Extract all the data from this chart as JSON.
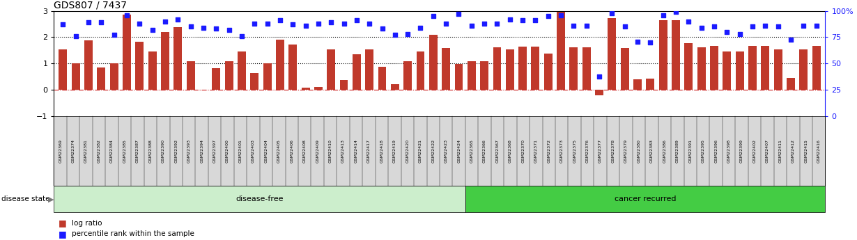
{
  "title": "GDS807 / 7437",
  "samples": [
    "GSM22369",
    "GSM22374",
    "GSM22381",
    "GSM22382",
    "GSM22384",
    "GSM22385",
    "GSM22387",
    "GSM22388",
    "GSM22390",
    "GSM22392",
    "GSM22393",
    "GSM22394",
    "GSM22397",
    "GSM22400",
    "GSM22401",
    "GSM22403",
    "GSM22404",
    "GSM22405",
    "GSM22406",
    "GSM22408",
    "GSM22409",
    "GSM22410",
    "GSM22413",
    "GSM22414",
    "GSM22417",
    "GSM22418",
    "GSM22419",
    "GSM22420",
    "GSM22421",
    "GSM22422",
    "GSM22423",
    "GSM22424",
    "GSM22365",
    "GSM22366",
    "GSM22367",
    "GSM22368",
    "GSM22370",
    "GSM22371",
    "GSM22372",
    "GSM22373",
    "GSM22375",
    "GSM22376",
    "GSM22377",
    "GSM22378",
    "GSM22379",
    "GSM22380",
    "GSM22383",
    "GSM22386",
    "GSM22389",
    "GSM22391",
    "GSM22395",
    "GSM22396",
    "GSM22398",
    "GSM22399",
    "GSM22402",
    "GSM22407",
    "GSM22411",
    "GSM22412",
    "GSM22415",
    "GSM22416"
  ],
  "log_ratio": [
    1.55,
    1.02,
    1.88,
    0.85,
    1.0,
    2.85,
    1.83,
    1.47,
    2.19,
    2.38,
    1.1,
    0.02,
    0.83,
    1.1,
    1.47,
    0.65,
    1.02,
    1.92,
    1.72,
    0.09,
    0.12,
    1.55,
    0.38,
    1.35,
    1.55,
    0.87,
    0.22,
    1.08,
    1.45,
    2.09,
    1.6,
    0.98,
    1.08,
    1.1,
    1.62,
    1.55,
    1.65,
    1.65,
    1.37,
    2.95,
    1.62,
    1.62,
    -0.2,
    2.72,
    1.6,
    0.41,
    0.43,
    2.65,
    2.65,
    1.78,
    1.62,
    1.68,
    1.47,
    1.45,
    1.67,
    1.68,
    1.55,
    0.47,
    1.55,
    1.68
  ],
  "percentile": [
    87,
    76,
    89,
    89,
    77,
    96,
    88,
    82,
    90,
    92,
    85,
    84,
    83,
    82,
    76,
    88,
    88,
    91,
    87,
    86,
    88,
    89,
    88,
    91,
    88,
    83,
    77,
    78,
    84,
    95,
    88,
    97,
    86,
    88,
    88,
    92,
    91,
    91,
    95,
    96,
    86,
    86,
    38,
    98,
    85,
    71,
    70,
    96,
    99,
    90,
    84,
    85,
    80,
    78,
    85,
    86,
    85,
    73,
    86,
    86
  ],
  "disease_free_count": 32,
  "bar_color": "#c0392b",
  "dot_color": "#1a1aff",
  "ylim_left": [
    -1,
    3
  ],
  "ylim_right": [
    0,
    100
  ],
  "yticks_left": [
    -1,
    0,
    1,
    2,
    3
  ],
  "yticks_right": [
    0,
    25,
    50,
    75,
    100
  ],
  "disease_free_label": "disease-free",
  "cancer_recurred_label": "cancer recurred",
  "disease_state_label": "disease state",
  "legend_bar_label": "log ratio",
  "legend_dot_label": "percentile rank within the sample",
  "disease_free_bg": "#cceecc",
  "cancer_recurred_bg": "#44cc44",
  "tick_bg": "#d8d8d8",
  "zero_line_color": "#cc2222",
  "grid_line_color": "#000000"
}
